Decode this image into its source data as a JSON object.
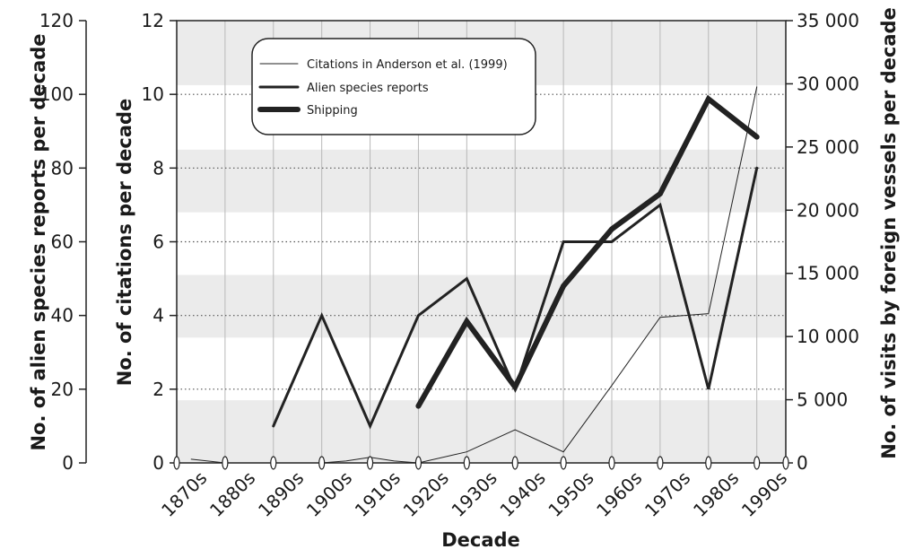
{
  "chart_data": {
    "type": "line",
    "xlabel": "Decade",
    "ylabel_outer_left": "No. of alien species reports per decade",
    "ylabel_inner_left": "No. of citations per decade",
    "ylabel_right": "No. of visits by foreign vessels per decade",
    "categories": [
      "1870s",
      "1880s",
      "1890s",
      "1900s",
      "1910s",
      "1920s",
      "1930s",
      "1940s",
      "1950s",
      "1960s",
      "1970s",
      "1980s",
      "1990s"
    ],
    "axes": {
      "citations": {
        "min": 0,
        "max": 12,
        "ticks": [
          0,
          2,
          4,
          6,
          8,
          10,
          12
        ]
      },
      "reports": {
        "min": 0,
        "max": 120,
        "ticks": [
          0,
          20,
          40,
          60,
          80,
          100,
          120
        ]
      },
      "visits": {
        "min": 0,
        "max": 35000,
        "ticks": [
          0,
          5000,
          10000,
          15000,
          20000,
          25000,
          30000,
          35000
        ],
        "tick_labels": [
          "0",
          "5 000",
          "10 000",
          "15 000",
          "20 000",
          "25 000",
          "30 000",
          "35 000"
        ]
      }
    },
    "bands_citation_ranges": [
      [
        0,
        1.7
      ],
      [
        3.4,
        5.1
      ],
      [
        6.8,
        8.5
      ],
      [
        10.25,
        12
      ]
    ],
    "gridlines_citations": [
      2,
      4,
      6,
      8,
      10
    ],
    "series": [
      {
        "name": "Citations in Anderson et al. (1999)",
        "axis": "citations",
        "stroke": "thin",
        "x": [
          1873,
          1880,
          1890,
          1900,
          1905,
          1910,
          1915,
          1920,
          1930,
          1940,
          1950,
          1960,
          1970,
          1980,
          1990
        ],
        "y": [
          0.1,
          0,
          0,
          0,
          0.05,
          0.15,
          0.05,
          0,
          0.3,
          0.9,
          0.3,
          2.1,
          3.95,
          4.05,
          10.2
        ]
      },
      {
        "name": "Alien species reports",
        "axis": "reports",
        "stroke": "medium",
        "x": [
          1890,
          1900,
          1910,
          1920,
          1930,
          1940,
          1950,
          1960,
          1970,
          1980,
          1990
        ],
        "y": [
          10,
          40,
          10,
          40,
          50,
          20,
          60,
          60,
          70,
          20,
          80
        ]
      },
      {
        "name": "Shipping",
        "axis": "visits",
        "stroke": "thick",
        "x": [
          1920,
          1930,
          1940,
          1950,
          1960,
          1970,
          1980,
          1990
        ],
        "y": [
          4500,
          11200,
          6000,
          14000,
          18500,
          21300,
          28800,
          25800
        ]
      }
    ],
    "legend_position": "top-left-inside",
    "colors": {
      "line": "#222222",
      "band": "#ebebeb",
      "grid": "#555555"
    }
  }
}
